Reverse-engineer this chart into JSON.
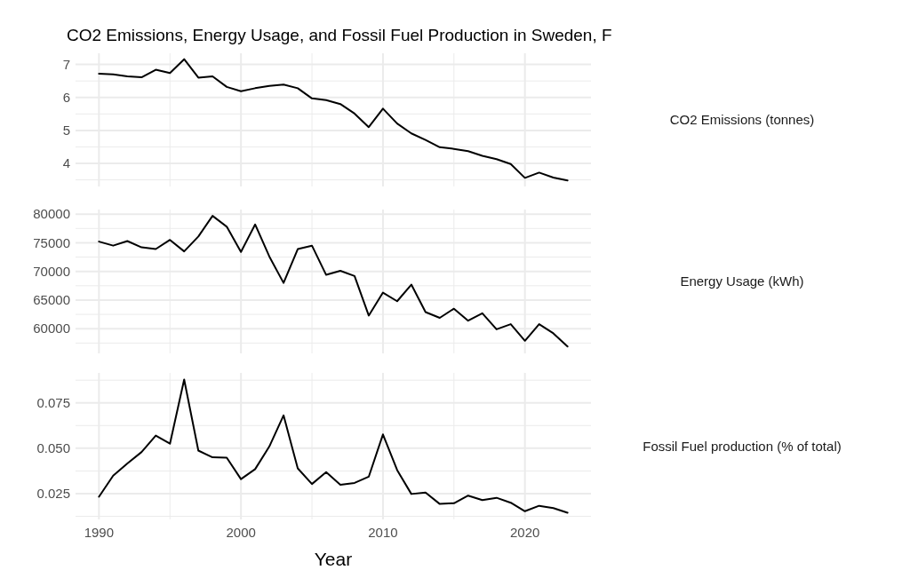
{
  "chart_data": [
    {
      "type": "line",
      "title": "CO2 Emissions, Energy Usage, and Fossil Fuel Production in Sweden, F",
      "ylabel": "CO2 Emissions (tonnes)",
      "x": [
        1990,
        1991,
        1992,
        1993,
        1994,
        1995,
        1996,
        1997,
        1998,
        1999,
        2000,
        2001,
        2002,
        2003,
        2004,
        2005,
        2006,
        2007,
        2008,
        2009,
        2010,
        2011,
        2012,
        2013,
        2014,
        2015,
        2016,
        2017,
        2018,
        2019,
        2020,
        2021,
        2022,
        2023
      ],
      "series": [
        {
          "color": "#000000",
          "values": [
            6.72,
            6.7,
            6.64,
            6.61,
            6.84,
            6.74,
            7.16,
            6.6,
            6.64,
            6.32,
            6.19,
            6.28,
            6.35,
            6.39,
            6.28,
            5.97,
            5.92,
            5.8,
            5.51,
            5.1,
            5.66,
            5.21,
            4.91,
            4.71,
            4.49,
            4.44,
            4.37,
            4.23,
            4.13,
            3.98,
            3.56,
            3.72,
            3.57,
            3.48
          ]
        }
      ],
      "xlim": [
        1988.35,
        2024.65
      ],
      "xticks": [
        1990,
        {
          "value": 1995,
          "label": null
        },
        2000,
        {
          "value": 2005,
          "label": null
        },
        2010,
        {
          "value": 2015,
          "label": null
        },
        2020
      ],
      "ylim": [
        3.3,
        7.34
      ],
      "yticks": [
        {
          "value": 3.5,
          "label": null
        },
        4,
        {
          "value": 4.5,
          "label": null
        },
        5,
        {
          "value": 5.5,
          "label": null
        },
        6,
        {
          "value": 6.5,
          "label": null
        },
        7
      ],
      "grid": true,
      "tick_labels": "y"
    },
    {
      "type": "line",
      "ylabel": "Energy Usage (kWh)",
      "x": [
        1990,
        1991,
        1992,
        1993,
        1994,
        1995,
        1996,
        1997,
        1998,
        1999,
        2000,
        2001,
        2002,
        2003,
        2004,
        2005,
        2006,
        2007,
        2008,
        2009,
        2010,
        2011,
        2012,
        2013,
        2014,
        2015,
        2016,
        2017,
        2018,
        2019,
        2020,
        2021,
        2022,
        2023
      ],
      "series": [
        {
          "color": "#000000",
          "values": [
            75200,
            74500,
            75300,
            74200,
            73900,
            75500,
            73500,
            76100,
            79700,
            77800,
            73400,
            78200,
            72600,
            68000,
            73900,
            74500,
            69400,
            70100,
            69200,
            62300,
            66300,
            64800,
            67700,
            62900,
            61900,
            63500,
            61400,
            62700,
            59900,
            60800,
            57900,
            60800,
            59200,
            56900
          ]
        }
      ],
      "xlim": [
        1988.35,
        2024.65
      ],
      "xticks": [
        1990,
        {
          "value": 1995,
          "label": null
        },
        2000,
        {
          "value": 2005,
          "label": null
        },
        2010,
        {
          "value": 2015,
          "label": null
        },
        2020
      ],
      "ylim": [
        55700,
        80800
      ],
      "yticks": [
        {
          "value": 57500,
          "label": null
        },
        60000,
        {
          "value": 62500,
          "label": null
        },
        65000,
        {
          "value": 67500,
          "label": null
        },
        70000,
        {
          "value": 72500,
          "label": null
        },
        75000,
        {
          "value": 77500,
          "label": null
        },
        80000
      ],
      "grid": true,
      "tick_labels": "y"
    },
    {
      "type": "line",
      "ylabel": "Fossil Fuel production (% of total)",
      "xlabel": "Year",
      "x": [
        1990,
        1991,
        1992,
        1993,
        1994,
        1995,
        1996,
        1997,
        1998,
        1999,
        2000,
        2001,
        2002,
        2003,
        2004,
        2005,
        2006,
        2007,
        2008,
        2009,
        2010,
        2011,
        2012,
        2013,
        2014,
        2015,
        2016,
        2017,
        2018,
        2019,
        2020,
        2021,
        2022,
        2023
      ],
      "series": [
        {
          "color": "#000000",
          "values": [
            0.0233,
            0.0349,
            0.0416,
            0.0479,
            0.057,
            0.0525,
            0.0878,
            0.0487,
            0.045,
            0.0448,
            0.033,
            0.0385,
            0.051,
            0.0681,
            0.0389,
            0.0303,
            0.0368,
            0.0299,
            0.0309,
            0.0343,
            0.0576,
            0.038,
            0.0248,
            0.0256,
            0.0193,
            0.0197,
            0.0239,
            0.0214,
            0.0227,
            0.02,
            0.0153,
            0.0183,
            0.017,
            0.0145
          ]
        }
      ],
      "xlim": [
        1988.35,
        2024.65
      ],
      "xticks": [
        1990,
        {
          "value": 1995,
          "label": null
        },
        2000,
        {
          "value": 2005,
          "label": null
        },
        2010,
        {
          "value": 2015,
          "label": null
        },
        2020
      ],
      "ylim": [
        0.0108,
        0.0915
      ],
      "yticks": [
        {
          "value": 0.0125,
          "label": null
        },
        {
          "value": 0.025,
          "label": "0.025"
        },
        {
          "value": 0.0375,
          "label": null
        },
        {
          "value": 0.05,
          "label": "0.050"
        },
        {
          "value": 0.0625,
          "label": null
        },
        {
          "value": 0.075,
          "label": "0.075"
        },
        {
          "value": 0.0875,
          "label": null
        }
      ],
      "grid": true
    }
  ]
}
